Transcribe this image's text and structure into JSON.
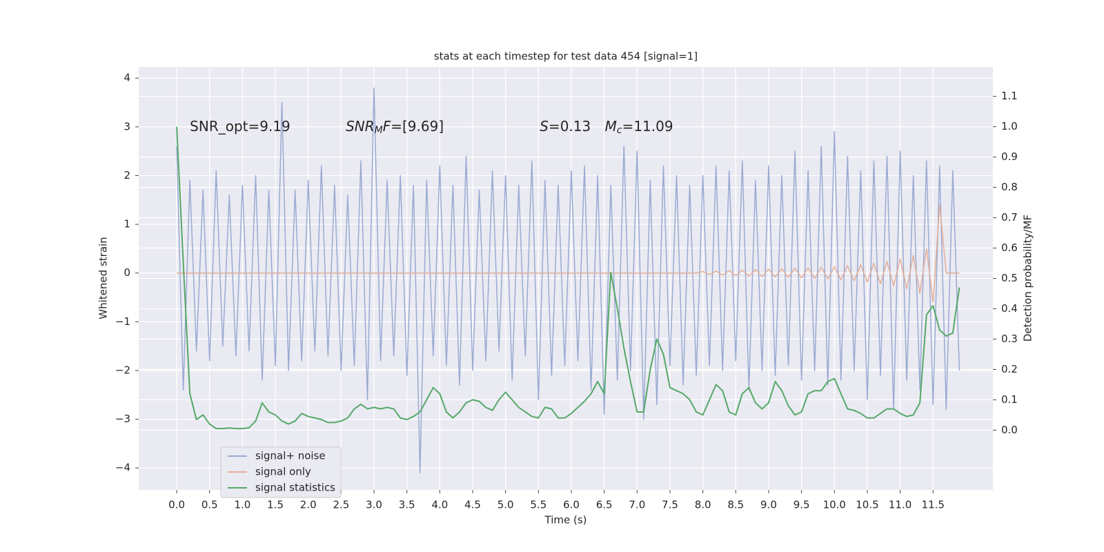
{
  "chart_data": {
    "type": "line",
    "title": "stats at each timestep for test data 454 [signal=1]",
    "xlabel": "Time (s)",
    "ylabel": "Whitened strain",
    "y2label": "Detection probability/MF",
    "annotations": [
      [
        "SNR_opt=9.19"
      ],
      [
        "SNR",
        "M",
        "F",
        "=[9.69]"
      ],
      [
        "S",
        "=0.13"
      ],
      [
        "M",
        "c",
        "=11.09"
      ]
    ],
    "grid": true,
    "legend": "lower left",
    "xlim": [
      -0.578,
      12.41
    ],
    "ylim": [
      -4.45,
      4.23
    ],
    "y2lim": [
      -0.197,
      1.197
    ],
    "xticks": [
      {
        "value": 0,
        "label": "0.0"
      },
      0.5,
      {
        "value": 1,
        "label": "1.0"
      },
      1.5,
      {
        "value": 2,
        "label": "2.0"
      },
      2.5,
      {
        "value": 3,
        "label": "3.0"
      },
      3.5,
      {
        "value": 4,
        "label": "4.0"
      },
      4.5,
      {
        "value": 5,
        "label": "5.0"
      },
      5.5,
      {
        "value": 6,
        "label": "6.0"
      },
      6.5,
      {
        "value": 7,
        "label": "7.0"
      },
      7.5,
      {
        "value": 8,
        "label": "8.0"
      },
      8.5,
      {
        "value": 9,
        "label": "9.0"
      },
      9.5,
      {
        "value": 10,
        "label": "10.0"
      },
      10.5,
      {
        "value": 11,
        "label": "11.0"
      },
      11.5
    ],
    "yticks": [
      {
        "value": -4,
        "label": "−4"
      },
      {
        "value": -3,
        "label": "−3"
      },
      {
        "value": -2,
        "label": "−2"
      },
      {
        "value": -1,
        "label": "−1"
      },
      0,
      1,
      2,
      3,
      4
    ],
    "y2ticks": [
      {
        "value": 0,
        "label": "0.0"
      },
      0.1,
      0.2,
      0.3,
      0.4,
      0.5,
      0.6,
      0.7,
      0.8,
      0.9,
      {
        "value": 1,
        "label": "1.0"
      },
      1.1
    ],
    "x": [
      0,
      0.1,
      0.2,
      0.3,
      0.4,
      0.5,
      0.6,
      0.7,
      0.8,
      0.9,
      1,
      1.1,
      1.2,
      1.3,
      1.4,
      1.5,
      1.6,
      1.7,
      1.8,
      1.9,
      2,
      2.1,
      2.2,
      2.3,
      2.4,
      2.5,
      2.6,
      2.7,
      2.8,
      2.9,
      3,
      3.1,
      3.2,
      3.3,
      3.4,
      3.5,
      3.6,
      3.7,
      3.8,
      3.9,
      4,
      4.1,
      4.2,
      4.3,
      4.4,
      4.5,
      4.6,
      4.7,
      4.8,
      4.9,
      5,
      5.1,
      5.2,
      5.3,
      5.4,
      5.5,
      5.6,
      5.7,
      5.8,
      5.9,
      6,
      6.1,
      6.2,
      6.3,
      6.4,
      6.5,
      6.6,
      6.7,
      6.8,
      6.9,
      7,
      7.1,
      7.2,
      7.3,
      7.4,
      7.5,
      7.6,
      7.7,
      7.8,
      7.9,
      8,
      8.1,
      8.2,
      8.3,
      8.4,
      8.5,
      8.6,
      8.7,
      8.8,
      8.9,
      9,
      9.1,
      9.2,
      9.3,
      9.4,
      9.5,
      9.6,
      9.7,
      9.8,
      9.9,
      10,
      10.1,
      10.2,
      10.3,
      10.4,
      10.5,
      10.6,
      10.7,
      10.8,
      10.9,
      11,
      11.1,
      11.2,
      11.3,
      11.4,
      11.5,
      11.6,
      11.7,
      11.8,
      11.9
    ],
    "series": [
      {
        "name": "signal+ noise",
        "color": "#9aaad3",
        "values": [
          2.6,
          -2.4,
          1.9,
          -1.6,
          1.7,
          -1.8,
          2.1,
          -1.5,
          1.6,
          -1.7,
          1.8,
          -1.6,
          2.0,
          -2.2,
          1.7,
          -1.9,
          3.5,
          -2.0,
          1.7,
          -1.8,
          1.9,
          -1.6,
          2.2,
          -1.7,
          1.8,
          -2.0,
          1.6,
          -1.9,
          2.3,
          -2.6,
          3.8,
          -1.8,
          1.9,
          -1.7,
          2.0,
          -2.1,
          1.8,
          -4.1,
          1.9,
          -1.7,
          2.2,
          -1.9,
          1.8,
          -2.3,
          2.4,
          -2.0,
          1.7,
          -1.8,
          2.1,
          -1.6,
          2.0,
          -2.2,
          1.8,
          -1.7,
          2.3,
          -2.6,
          1.9,
          -2.1,
          1.8,
          -1.9,
          2.1,
          -1.8,
          2.2,
          -2.4,
          2.0,
          -2.9,
          1.8,
          -2.2,
          2.6,
          -2.0,
          2.5,
          -3.0,
          1.9,
          -2.7,
          2.2,
          -1.9,
          2.0,
          -2.3,
          1.8,
          -2.1,
          2.0,
          -1.9,
          2.2,
          -2.0,
          2.1,
          -1.8,
          2.3,
          -2.4,
          1.9,
          -2.0,
          2.2,
          -2.1,
          2.0,
          -1.9,
          2.5,
          -2.2,
          2.1,
          -2.0,
          2.6,
          -2.3,
          2.9,
          -2.2,
          2.4,
          -2.0,
          2.1,
          -2.6,
          2.3,
          -2.1,
          2.4,
          -2.8,
          2.5,
          -2.2,
          2.0,
          -2.4,
          2.3,
          -2.7,
          2.2,
          -2.8,
          2.1,
          -2.0
        ]
      },
      {
        "name": "signal only",
        "color": "#e3ad97",
        "values": [
          0,
          0,
          0,
          0,
          0,
          0,
          0,
          0,
          0,
          0,
          0,
          0,
          0,
          0,
          0,
          0,
          0,
          0,
          0,
          0,
          0,
          0,
          0,
          0,
          0,
          0,
          0,
          0,
          0,
          0,
          0,
          0,
          0,
          0,
          0,
          0,
          0,
          0,
          0,
          0,
          0,
          0,
          0,
          0,
          0,
          0,
          0,
          0,
          0,
          0,
          0,
          0,
          0,
          0,
          0,
          0,
          0,
          0,
          0,
          0,
          0,
          0,
          0,
          0,
          0,
          0,
          0,
          0,
          0,
          0,
          0,
          0,
          0,
          0,
          0,
          0,
          0,
          0,
          0,
          0,
          0.03,
          -0.03,
          0.04,
          -0.04,
          0.05,
          -0.05,
          0.06,
          -0.06,
          0.07,
          -0.07,
          0.08,
          -0.08,
          0.09,
          -0.09,
          0.1,
          -0.1,
          0.11,
          -0.11,
          0.12,
          -0.12,
          0.13,
          -0.14,
          0.15,
          -0.16,
          0.17,
          -0.18,
          0.2,
          -0.22,
          0.24,
          -0.26,
          0.29,
          -0.32,
          0.36,
          -0.42,
          0.5,
          -0.6,
          1.4,
          0,
          0,
          0
        ]
      },
      {
        "name": "signal statistics",
        "color": "#55a868",
        "axis": "y2",
        "values": [
          1.0,
          0.55,
          0.12,
          0.035,
          0.05,
          0.02,
          0.005,
          0.005,
          0.007,
          0.005,
          0.005,
          0.008,
          0.03,
          0.09,
          0.06,
          0.05,
          0.03,
          0.02,
          0.03,
          0.055,
          0.045,
          0.04,
          0.035,
          0.025,
          0.025,
          0.03,
          0.04,
          0.07,
          0.085,
          0.07,
          0.075,
          0.07,
          0.075,
          0.07,
          0.04,
          0.035,
          0.045,
          0.06,
          0.1,
          0.14,
          0.12,
          0.06,
          0.04,
          0.06,
          0.09,
          0.1,
          0.095,
          0.075,
          0.065,
          0.1,
          0.125,
          0.1,
          0.075,
          0.06,
          0.045,
          0.04,
          0.075,
          0.07,
          0.04,
          0.04,
          0.055,
          0.075,
          0.095,
          0.12,
          0.16,
          0.12,
          0.52,
          0.4,
          0.27,
          0.16,
          0.06,
          0.06,
          0.2,
          0.3,
          0.25,
          0.14,
          0.13,
          0.12,
          0.1,
          0.06,
          0.05,
          0.1,
          0.15,
          0.13,
          0.06,
          0.05,
          0.12,
          0.14,
          0.09,
          0.07,
          0.09,
          0.16,
          0.13,
          0.08,
          0.05,
          0.06,
          0.12,
          0.13,
          0.13,
          0.16,
          0.17,
          0.12,
          0.07,
          0.065,
          0.055,
          0.04,
          0.04,
          0.055,
          0.07,
          0.07,
          0.055,
          0.045,
          0.05,
          0.09,
          0.38,
          0.41,
          0.33,
          0.31,
          0.32,
          0.47
        ]
      }
    ]
  }
}
